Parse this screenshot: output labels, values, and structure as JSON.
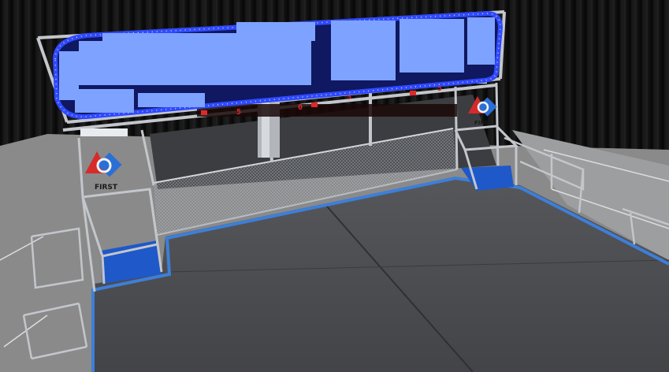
{
  "scene": {
    "colors": {
      "curtain": "#141414",
      "floor": "#4a4a4c",
      "floor_light": "#5a5a5d",
      "tape": "#3d7fd9",
      "frame": "#b8bcc2",
      "led": "#2f49ff",
      "redaction": "#7ea2ff",
      "goal_pad": "#1f58c8",
      "digit_red": "#e02828"
    },
    "logos": [
      {
        "name": "first-logo-left",
        "text": "FIRST"
      },
      {
        "name": "first-logo-right",
        "text": "FIRST"
      }
    ],
    "digits": [
      "5",
      "0",
      "5",
      "5"
    ]
  }
}
